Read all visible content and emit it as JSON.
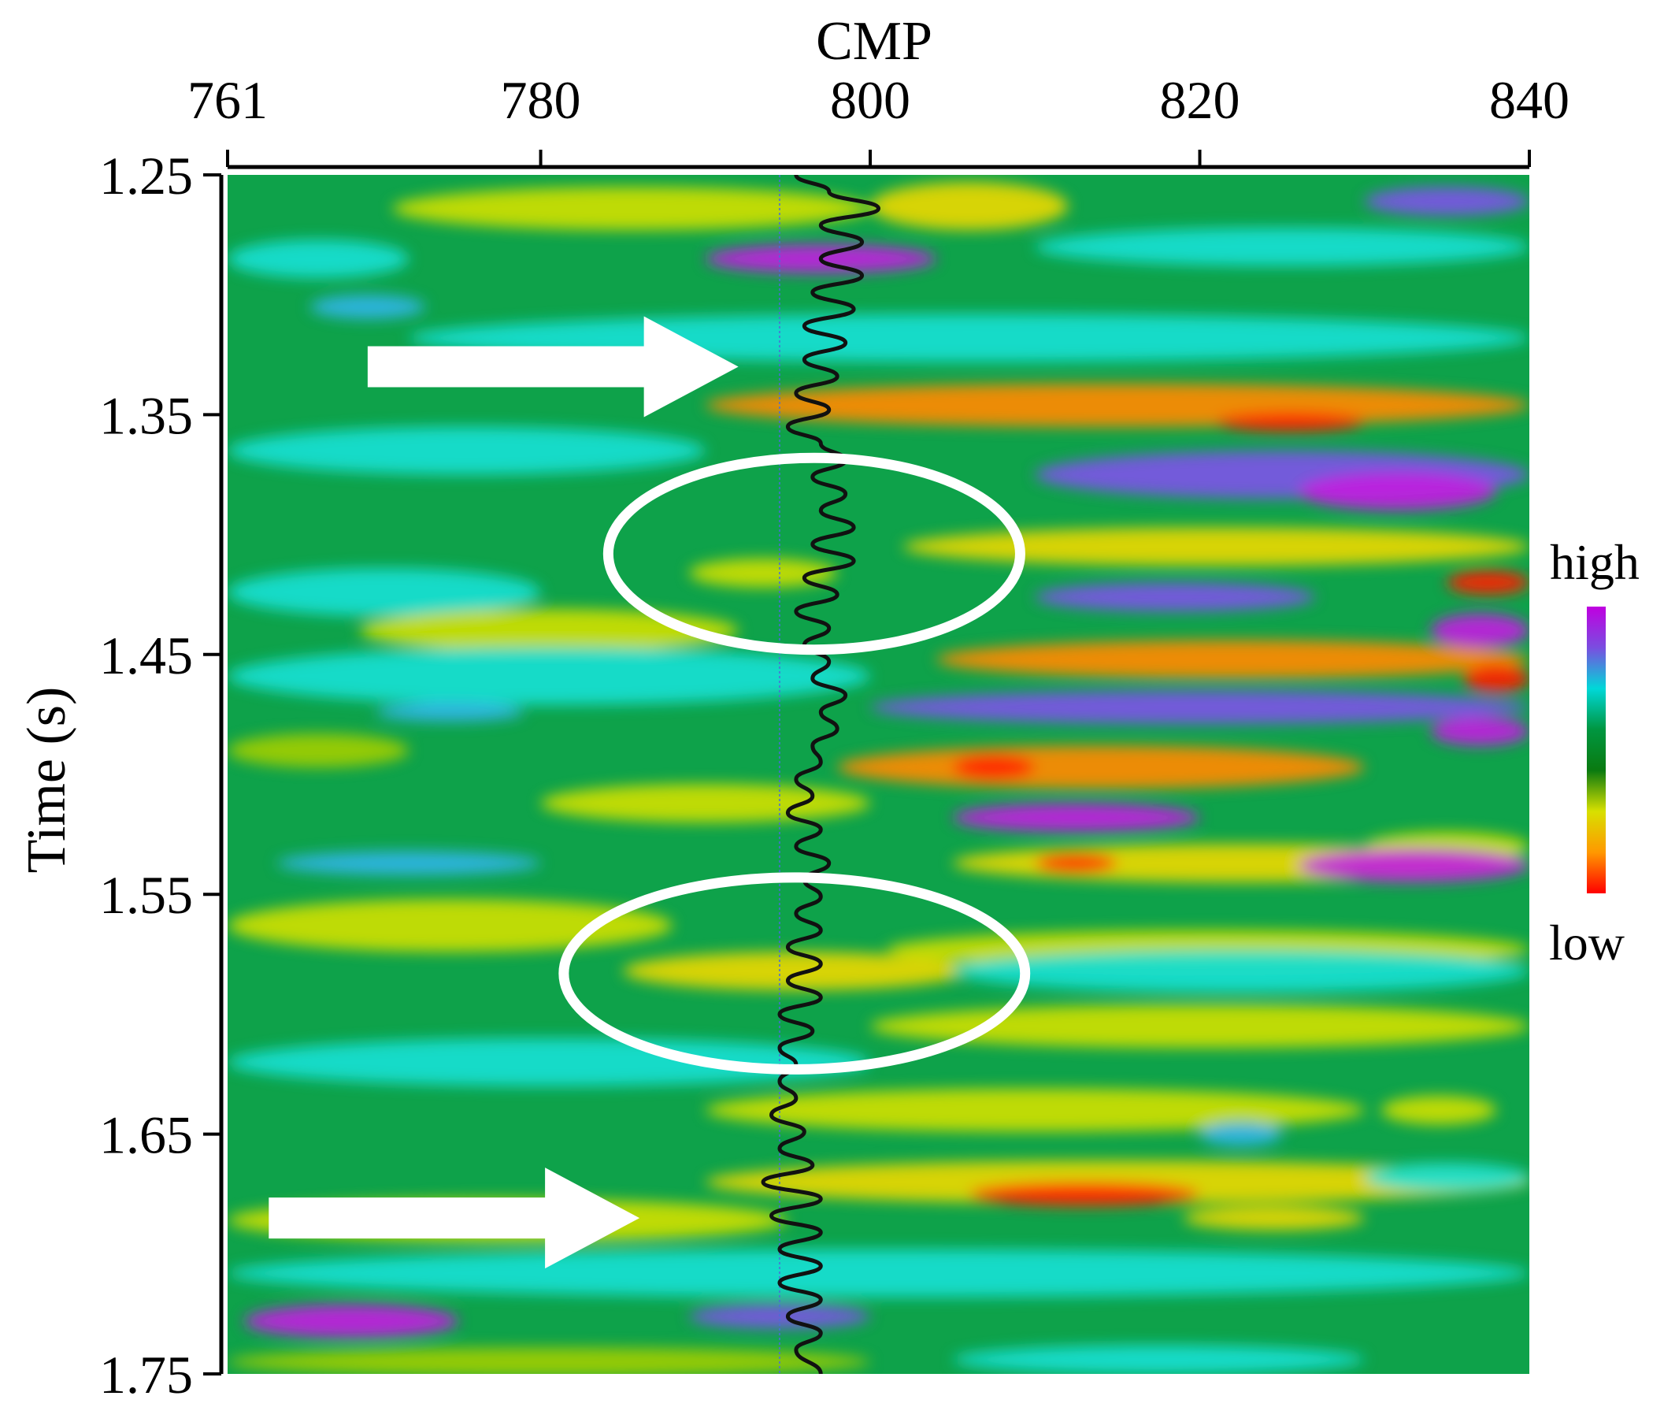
{
  "chart_data": {
    "type": "heatmap",
    "xlabel": "CMP",
    "ylabel": "Time (s)",
    "xlim": [
      761,
      840
    ],
    "ylim": [
      1.25,
      1.75
    ],
    "y_inverted": true,
    "x_axis_position": "top",
    "x_ticks": [
      {
        "value": 761,
        "label": "761"
      },
      {
        "value": 780,
        "label": "780"
      },
      {
        "value": 800,
        "label": "800"
      },
      {
        "value": 820,
        "label": "820"
      },
      {
        "value": 840,
        "label": "840"
      }
    ],
    "y_ticks": [
      {
        "value": 1.25,
        "label": "1.25"
      },
      {
        "value": 1.35,
        "label": "1.35"
      },
      {
        "value": 1.45,
        "label": "1.45"
      },
      {
        "value": 1.55,
        "label": "1.55"
      },
      {
        "value": 1.65,
        "label": "1.65"
      },
      {
        "value": 1.75,
        "label": "1.75"
      }
    ],
    "colorbar": {
      "top_label": "high",
      "bottom_label": "low",
      "colors": [
        "#c000e0",
        "#7a4de0",
        "#00d8d8",
        "#009640",
        "#0a7a10",
        "#d8e000",
        "#ff9800",
        "#ff0000"
      ]
    },
    "background_color": "#0ea24a",
    "bands": [
      {
        "t": 1.264,
        "x0": 771,
        "x1": 800,
        "amp": 0.55,
        "w": 0.009
      },
      {
        "t": 1.263,
        "x0": 800,
        "x1": 812,
        "amp": 0.6,
        "w": 0.01
      },
      {
        "t": 1.261,
        "x0": 830,
        "x1": 840,
        "amp": -0.7,
        "w": 0.006
      },
      {
        "t": 1.285,
        "x0": 761,
        "x1": 772,
        "amp": -0.3,
        "w": 0.008
      },
      {
        "t": 1.285,
        "x0": 790,
        "x1": 804,
        "amp": -0.9,
        "w": 0.006
      },
      {
        "t": 1.28,
        "x0": 810,
        "x1": 840,
        "amp": -0.35,
        "w": 0.008
      },
      {
        "t": 1.305,
        "x0": 766,
        "x1": 773,
        "amp": -0.6,
        "w": 0.005
      },
      {
        "t": 1.318,
        "x0": 772,
        "x1": 840,
        "amp": -0.3,
        "w": 0.01
      },
      {
        "t": 1.346,
        "x0": 790,
        "x1": 840,
        "amp": 0.85,
        "w": 0.009
      },
      {
        "t": 1.353,
        "x0": 821,
        "x1": 830,
        "amp": 0.95,
        "w": 0.004
      },
      {
        "t": 1.365,
        "x0": 761,
        "x1": 790,
        "amp": -0.35,
        "w": 0.01
      },
      {
        "t": 1.375,
        "x0": 810,
        "x1": 840,
        "amp": -0.7,
        "w": 0.01
      },
      {
        "t": 1.382,
        "x0": 826,
        "x1": 838,
        "amp": -0.95,
        "w": 0.008
      },
      {
        "t": 1.405,
        "x0": 802,
        "x1": 840,
        "amp": 0.7,
        "w": 0.008
      },
      {
        "t": 1.416,
        "x0": 789,
        "x1": 798,
        "amp": 0.5,
        "w": 0.006
      },
      {
        "t": 1.42,
        "x0": 835,
        "x1": 840,
        "amp": 0.9,
        "w": 0.005
      },
      {
        "t": 1.424,
        "x0": 761,
        "x1": 780,
        "amp": -0.35,
        "w": 0.01
      },
      {
        "t": 1.426,
        "x0": 810,
        "x1": 827,
        "amp": -0.75,
        "w": 0.006
      },
      {
        "t": 1.44,
        "x0": 769,
        "x1": 792,
        "amp": 0.55,
        "w": 0.009
      },
      {
        "t": 1.44,
        "x0": 834,
        "x1": 840,
        "amp": -0.9,
        "w": 0.007
      },
      {
        "t": 1.452,
        "x0": 804,
        "x1": 840,
        "amp": 0.75,
        "w": 0.008
      },
      {
        "t": 1.459,
        "x0": 761,
        "x1": 800,
        "amp": -0.25,
        "w": 0.012
      },
      {
        "t": 1.46,
        "x0": 836,
        "x1": 840,
        "amp": 1.0,
        "w": 0.006
      },
      {
        "t": 1.472,
        "x0": 800,
        "x1": 840,
        "amp": -0.75,
        "w": 0.007
      },
      {
        "t": 1.474,
        "x0": 770,
        "x1": 779,
        "amp": -0.6,
        "w": 0.004
      },
      {
        "t": 1.482,
        "x0": 834,
        "x1": 840,
        "amp": -0.9,
        "w": 0.006
      },
      {
        "t": 1.497,
        "x0": 798,
        "x1": 830,
        "amp": 0.8,
        "w": 0.009
      },
      {
        "t": 1.497,
        "x0": 805,
        "x1": 810,
        "amp": 1.0,
        "w": 0.005
      },
      {
        "t": 1.49,
        "x0": 761,
        "x1": 772,
        "amp": 0.4,
        "w": 0.007
      },
      {
        "t": 1.512,
        "x0": 780,
        "x1": 800,
        "amp": 0.45,
        "w": 0.008
      },
      {
        "t": 1.518,
        "x0": 805,
        "x1": 820,
        "amp": -0.95,
        "w": 0.006
      },
      {
        "t": 1.53,
        "x0": 830,
        "x1": 840,
        "amp": 0.5,
        "w": 0.006
      },
      {
        "t": 1.537,
        "x0": 805,
        "x1": 840,
        "amp": 0.7,
        "w": 0.008
      },
      {
        "t": 1.537,
        "x0": 810,
        "x1": 815,
        "amp": 0.95,
        "w": 0.004
      },
      {
        "t": 1.537,
        "x0": 764,
        "x1": 780,
        "amp": -0.6,
        "w": 0.005
      },
      {
        "t": 1.538,
        "x0": 826,
        "x1": 840,
        "amp": -0.85,
        "w": 0.007
      },
      {
        "t": 1.563,
        "x0": 761,
        "x1": 788,
        "amp": 0.45,
        "w": 0.011
      },
      {
        "t": 1.573,
        "x0": 801,
        "x1": 840,
        "amp": 0.45,
        "w": 0.008
      },
      {
        "t": 1.582,
        "x0": 785,
        "x1": 806,
        "amp": 0.7,
        "w": 0.008
      },
      {
        "t": 1.582,
        "x0": 805,
        "x1": 840,
        "amp": -0.3,
        "w": 0.009
      },
      {
        "t": 1.605,
        "x0": 800,
        "x1": 840,
        "amp": 0.5,
        "w": 0.009
      },
      {
        "t": 1.62,
        "x0": 761,
        "x1": 800,
        "amp": -0.3,
        "w": 0.01
      },
      {
        "t": 1.64,
        "x0": 790,
        "x1": 830,
        "amp": 0.45,
        "w": 0.009
      },
      {
        "t": 1.64,
        "x0": 831,
        "x1": 838,
        "amp": 0.5,
        "w": 0.006
      },
      {
        "t": 1.65,
        "x0": 820,
        "x1": 825,
        "amp": -0.6,
        "w": 0.005
      },
      {
        "t": 1.67,
        "x0": 790,
        "x1": 840,
        "amp": 0.6,
        "w": 0.009
      },
      {
        "t": 1.675,
        "x0": 806,
        "x1": 820,
        "amp": 0.9,
        "w": 0.005
      },
      {
        "t": 1.668,
        "x0": 830,
        "x1": 840,
        "amp": -0.35,
        "w": 0.006
      },
      {
        "t": 1.686,
        "x0": 761,
        "x1": 795,
        "amp": 0.55,
        "w": 0.009
      },
      {
        "t": 1.685,
        "x0": 819,
        "x1": 830,
        "amp": 0.7,
        "w": 0.005
      },
      {
        "t": 1.708,
        "x0": 761,
        "x1": 840,
        "amp": -0.35,
        "w": 0.01
      },
      {
        "t": 1.728,
        "x0": 762,
        "x1": 775,
        "amp": -0.95,
        "w": 0.007
      },
      {
        "t": 1.726,
        "x0": 789,
        "x1": 800,
        "amp": -0.75,
        "w": 0.005
      },
      {
        "t": 1.745,
        "x0": 761,
        "x1": 800,
        "amp": 0.35,
        "w": 0.006
      },
      {
        "t": 1.744,
        "x0": 805,
        "x1": 830,
        "amp": -0.3,
        "w": 0.006
      }
    ],
    "trace": {
      "cmp_center": 797.5,
      "points": [
        [
          1.25,
          795.5
        ],
        [
          1.257,
          797.5
        ],
        [
          1.264,
          800.5
        ],
        [
          1.271,
          797.0
        ],
        [
          1.278,
          799.5
        ],
        [
          1.285,
          797.0
        ],
        [
          1.292,
          799.5
        ],
        [
          1.299,
          796.5
        ],
        [
          1.306,
          799.0
        ],
        [
          1.313,
          796.0
        ],
        [
          1.32,
          798.5
        ],
        [
          1.327,
          796.0
        ],
        [
          1.334,
          798.0
        ],
        [
          1.341,
          795.5
        ],
        [
          1.348,
          797.5
        ],
        [
          1.355,
          795.0
        ],
        [
          1.362,
          797.0
        ],
        [
          1.369,
          798.5
        ],
        [
          1.376,
          796.5
        ],
        [
          1.383,
          798.5
        ],
        [
          1.39,
          797.0
        ],
        [
          1.397,
          799.0
        ],
        [
          1.404,
          796.5
        ],
        [
          1.411,
          799.0
        ],
        [
          1.418,
          796.0
        ],
        [
          1.425,
          798.0
        ],
        [
          1.432,
          795.5
        ],
        [
          1.439,
          797.5
        ],
        [
          1.446,
          796.0
        ],
        [
          1.453,
          797.5
        ],
        [
          1.46,
          796.5
        ],
        [
          1.467,
          798.5
        ],
        [
          1.474,
          797.0
        ],
        [
          1.481,
          798.0
        ],
        [
          1.488,
          796.5
        ],
        [
          1.495,
          797.0
        ],
        [
          1.502,
          795.5
        ],
        [
          1.509,
          796.5
        ],
        [
          1.516,
          795.0
        ],
        [
          1.523,
          797.0
        ],
        [
          1.53,
          795.5
        ],
        [
          1.537,
          797.5
        ],
        [
          1.544,
          796.0
        ],
        [
          1.551,
          797.0
        ],
        [
          1.558,
          795.5
        ],
        [
          1.565,
          797.0
        ],
        [
          1.572,
          795.0
        ],
        [
          1.579,
          797.0
        ],
        [
          1.586,
          795.0
        ],
        [
          1.593,
          797.0
        ],
        [
          1.6,
          794.5
        ],
        [
          1.607,
          796.5
        ],
        [
          1.614,
          794.5
        ],
        [
          1.621,
          795.5
        ],
        [
          1.628,
          794.5
        ],
        [
          1.635,
          795.5
        ],
        [
          1.642,
          794.0
        ],
        [
          1.649,
          796.0
        ],
        [
          1.656,
          794.5
        ],
        [
          1.663,
          796.5
        ],
        [
          1.67,
          793.5
        ],
        [
          1.677,
          797.0
        ],
        [
          1.684,
          794.0
        ],
        [
          1.691,
          797.0
        ],
        [
          1.698,
          794.5
        ],
        [
          1.705,
          797.0
        ],
        [
          1.712,
          794.5
        ],
        [
          1.719,
          797.0
        ],
        [
          1.726,
          795.0
        ],
        [
          1.733,
          797.0
        ],
        [
          1.74,
          795.5
        ],
        [
          1.75,
          797.0
        ]
      ]
    },
    "dashed_line_cmp": 794.5,
    "annotations": [
      {
        "shape": "arrow",
        "x_start": 769.5,
        "x_end": 792,
        "t": 1.33
      },
      {
        "shape": "arrow",
        "x_start": 763.5,
        "x_end": 786,
        "t": 1.685
      },
      {
        "shape": "ellipse",
        "cx": 796.6,
        "cy": 1.408,
        "rx": 12.5,
        "ry": 0.04
      },
      {
        "shape": "ellipse",
        "cx": 795.4,
        "cy": 1.583,
        "rx": 14,
        "ry": 0.04
      }
    ]
  }
}
